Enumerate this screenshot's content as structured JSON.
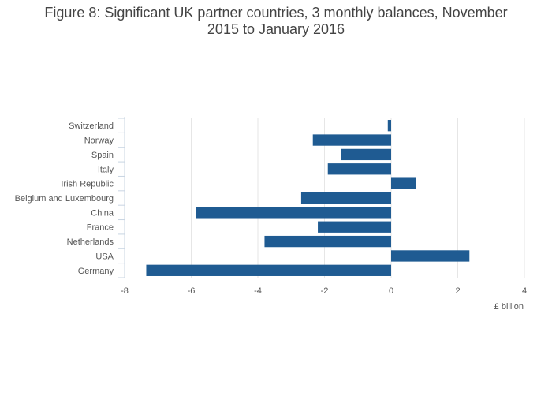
{
  "title_line1": "Figure 8: Significant UK partner countries, 3 monthly balances, November",
  "title_line2": "2015 to January 2016",
  "chart_data": {
    "type": "bar",
    "orientation": "horizontal",
    "title": "Figure 8: Significant UK partner countries, 3 monthly balances, November 2015 to January 2016",
    "xlabel": "£ billion",
    "ylabel": "",
    "xlim": [
      -8,
      4
    ],
    "xticks": [
      -8,
      -6,
      -4,
      -2,
      0,
      2,
      4
    ],
    "grid": true,
    "bar_color": "#1f5b92",
    "categories": [
      "Switzerland",
      "Norway",
      "Spain",
      "Italy",
      "Irish Republic",
      "Belgium and Luxembourg",
      "China",
      "France",
      "Netherlands",
      "USA",
      "Germany"
    ],
    "values": [
      -0.1,
      -2.35,
      -1.5,
      -1.9,
      0.75,
      -2.7,
      -5.85,
      -2.2,
      -3.8,
      2.35,
      -7.35
    ]
  }
}
